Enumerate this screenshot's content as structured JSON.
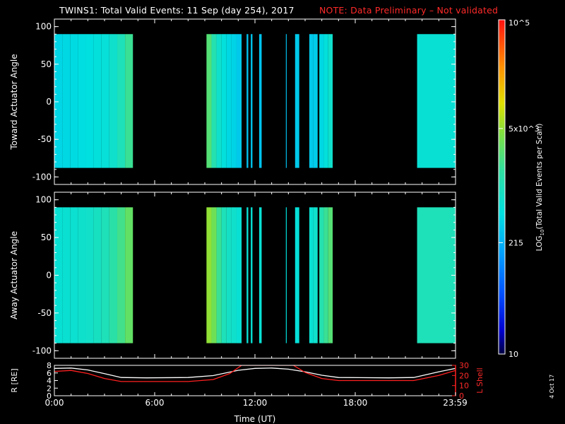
{
  "title": "TWINS1: Total Valid Events: 11 Sep (day 254), 2017",
  "note": "NOTE: Data Preliminary – Not validated",
  "date_stamp": "4 Oct 17",
  "colors": {
    "note": "#ff2a2a",
    "rshell": "#ffffff",
    "lshell": "#ff2020"
  },
  "chart_data": [
    {
      "type": "heatmap",
      "panel": "toward",
      "ylabel": "Toward Actuator Angle",
      "ylim": [
        -110,
        110
      ],
      "yticks": [
        "100",
        "50",
        "0",
        "-50",
        "-100"
      ],
      "angle_range": [
        -88,
        90
      ],
      "blocks": [
        {
          "start": 0.0,
          "end": 4.7,
          "values": [
            400,
            420,
            440,
            460,
            480,
            520,
            560,
            700,
            1000,
            1800
          ]
        },
        {
          "start": 9.1,
          "end": 11.2,
          "values": [
            2500,
            1200,
            700,
            520,
            420,
            380,
            320
          ]
        },
        {
          "start": 11.5,
          "end": 11.6,
          "values": [
            280
          ]
        },
        {
          "start": 11.75,
          "end": 11.85,
          "values": [
            300
          ]
        },
        {
          "start": 12.25,
          "end": 12.4,
          "values": [
            290
          ]
        },
        {
          "start": 13.85,
          "end": 13.9,
          "values": [
            280
          ]
        },
        {
          "start": 14.4,
          "end": 14.65,
          "values": [
            320
          ]
        },
        {
          "start": 15.25,
          "end": 15.75,
          "values": [
            320,
            340
          ]
        },
        {
          "start": 15.85,
          "end": 16.65,
          "values": [
            420,
            520,
            700
          ]
        },
        {
          "start": 21.7,
          "end": 24.0,
          "values": [
            600
          ]
        }
      ]
    },
    {
      "type": "heatmap",
      "panel": "away",
      "ylabel": "Away Actuator Angle",
      "ylim": [
        -110,
        110
      ],
      "yticks": [
        "100",
        "50",
        "0",
        "-50",
        "-100"
      ],
      "angle_range": [
        -90,
        90
      ],
      "blocks": [
        {
          "start": 0.0,
          "end": 4.7,
          "values": [
            600,
            620,
            650,
            700,
            750,
            850,
            1000,
            1400,
            2000,
            3000
          ]
        },
        {
          "start": 9.1,
          "end": 11.2,
          "values": [
            5000,
            3500,
            1800,
            1000,
            800,
            700,
            600
          ]
        },
        {
          "start": 11.5,
          "end": 11.6,
          "values": [
            600
          ]
        },
        {
          "start": 11.75,
          "end": 11.85,
          "values": [
            600
          ]
        },
        {
          "start": 12.25,
          "end": 12.4,
          "values": [
            600
          ]
        },
        {
          "start": 13.85,
          "end": 13.9,
          "values": [
            500
          ]
        },
        {
          "start": 14.4,
          "end": 14.65,
          "values": [
            550
          ]
        },
        {
          "start": 15.25,
          "end": 15.75,
          "values": [
            600,
            700
          ]
        },
        {
          "start": 15.85,
          "end": 16.65,
          "values": [
            1200,
            1800,
            2500
          ]
        },
        {
          "start": 21.7,
          "end": 24.0,
          "values": [
            1000
          ]
        }
      ]
    },
    {
      "type": "line",
      "panel": "ephemeris",
      "xlabel": "Time (UT)",
      "ylabel": "R [RE]",
      "ylabel_right": "L Shell",
      "ylim_left": [
        0,
        8
      ],
      "ylim_right": [
        0,
        30
      ],
      "yticks_left": [
        "8",
        "6",
        "4",
        "2",
        "0"
      ],
      "yticks_right": [
        "30",
        "20",
        "10",
        "0"
      ],
      "xticks": [
        "0:00",
        "6:00",
        "12:00",
        "18:00",
        "23:59"
      ],
      "xticks_values": [
        0,
        6,
        12,
        18,
        23.98
      ],
      "series": [
        {
          "axis": "left",
          "points": [
            [
              0,
              7.2
            ],
            [
              1,
              7.3
            ],
            [
              2,
              6.8
            ],
            [
              3,
              5.8
            ],
            [
              4,
              4.8
            ],
            [
              5.5,
              4.7
            ],
            [
              8,
              4.8
            ],
            [
              9.5,
              5.3
            ],
            [
              11,
              6.7
            ],
            [
              12,
              7.2
            ],
            [
              13,
              7.3
            ],
            [
              14,
              7.0
            ],
            [
              15,
              6.3
            ],
            [
              16,
              5.4
            ],
            [
              17,
              4.8
            ],
            [
              20,
              4.7
            ],
            [
              21.5,
              4.8
            ],
            [
              23,
              6.3
            ],
            [
              24,
              7.2
            ]
          ]
        },
        {
          "axis": "right",
          "points": [
            [
              0,
              24
            ],
            [
              1,
              25
            ],
            [
              2,
              22
            ],
            [
              3,
              17
            ],
            [
              4,
              14
            ],
            [
              5.5,
              14
            ],
            [
              8,
              14
            ],
            [
              9.5,
              16
            ],
            [
              10.5,
              22
            ],
            [
              11.2,
              30
            ],
            [
              14.3,
              30
            ],
            [
              15,
              23
            ],
            [
              16,
              17
            ],
            [
              17,
              15
            ],
            [
              20,
              15
            ],
            [
              21.5,
              15
            ],
            [
              23,
              20
            ],
            [
              24,
              25
            ]
          ]
        }
      ]
    },
    {
      "type": "colorbar",
      "label": "LOG10(Total Valid Events per Scan)",
      "range": [
        10,
        100000
      ],
      "tick_labels": [
        "10",
        "215",
        "5x10^3",
        "10^5"
      ],
      "tick_values": [
        10,
        215,
        5000,
        100000
      ]
    }
  ]
}
